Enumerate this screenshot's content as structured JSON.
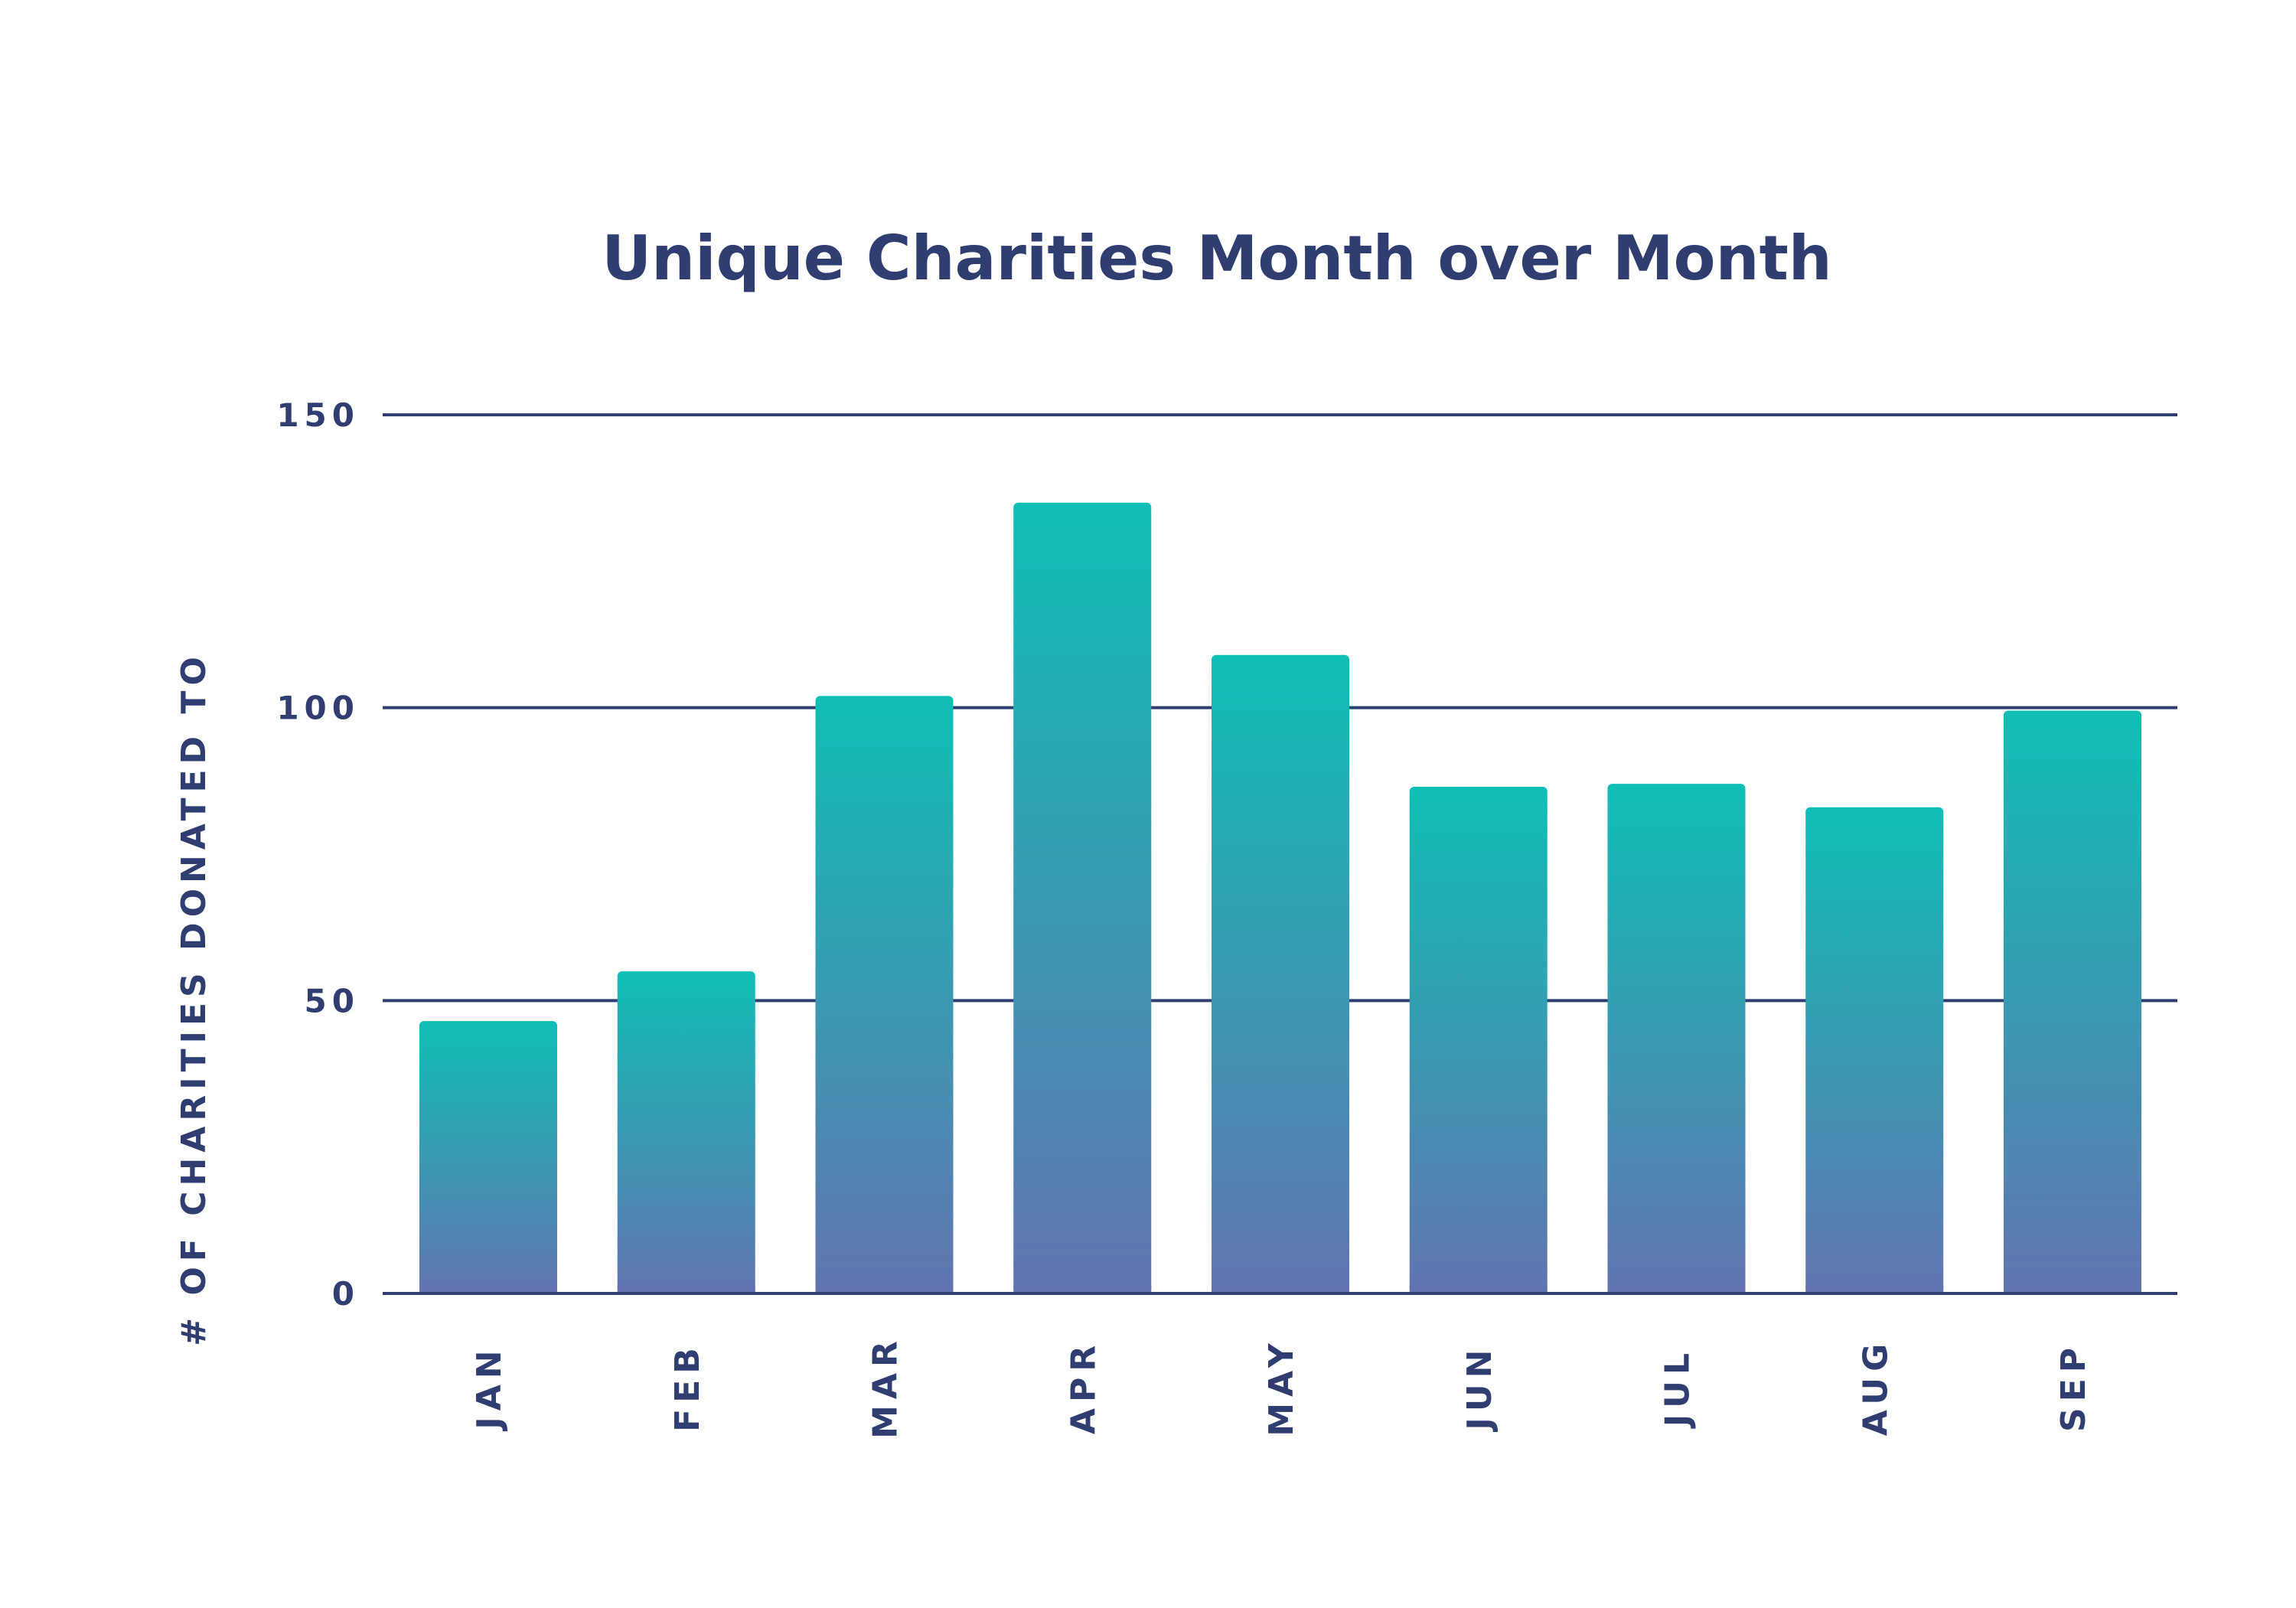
{
  "chart_data": {
    "type": "bar",
    "title": "Unique Charities Month over Month",
    "xlabel": "",
    "ylabel": "# OF CHARITIES DONATED TO",
    "categories": [
      "JAN",
      "FEB",
      "MAR",
      "APR",
      "MAY",
      "JUN",
      "JUL",
      "AUG",
      "SEP"
    ],
    "values": [
      46.5,
      55,
      102,
      135,
      109,
      86.5,
      87,
      83,
      99.5
    ],
    "ylim": [
      0,
      150
    ],
    "yticks": [
      "0",
      "50",
      "100",
      "150"
    ],
    "grid": true,
    "legend": "none"
  },
  "colors": {
    "text": "#2f3d70",
    "gridline": "#2f3d70",
    "bar_top": "#0fbfb5",
    "bar_bottom": "#6274b0",
    "background": "#ffffff"
  }
}
